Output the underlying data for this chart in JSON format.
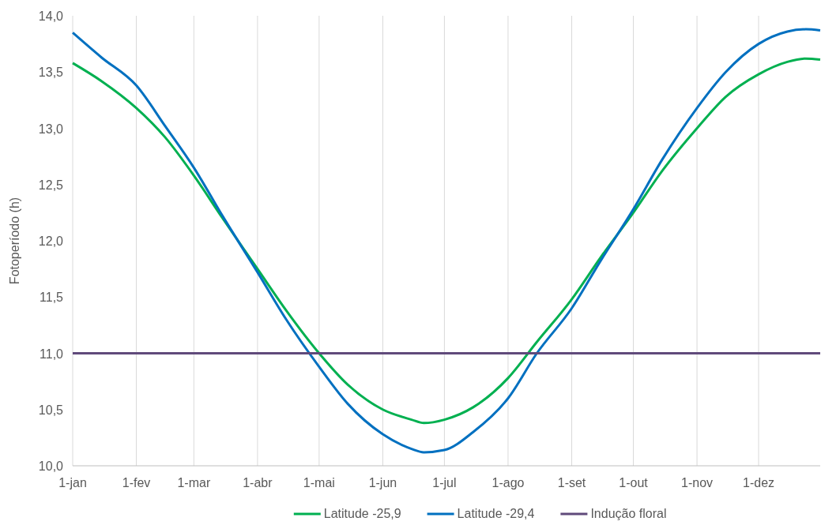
{
  "chart_data": {
    "type": "line",
    "ylabel": "Fotoperíodo (h)",
    "legend": "bottom",
    "grid": "x",
    "line_style": "solid",
    "marker": "none",
    "x": [
      "--01-01",
      "--01-15",
      "--02-01",
      "--02-15",
      "--03-01",
      "--03-15",
      "--04-01",
      "--04-15",
      "--05-01",
      "--05-15",
      "--06-01",
      "--06-15",
      "--06-21",
      "--07-01",
      "--07-15",
      "--08-01",
      "--08-15",
      "--09-01",
      "--09-15",
      "--10-01",
      "--10-15",
      "--11-01",
      "--11-15",
      "--12-01",
      "--12-15",
      "--12-24",
      "--12-31"
    ],
    "series": [
      {
        "name": "Latitude -25,9",
        "color": "#00b050",
        "values": [
          13.58,
          13.42,
          13.18,
          12.92,
          12.58,
          12.2,
          11.75,
          11.38,
          11.0,
          10.72,
          10.5,
          10.41,
          10.38,
          10.41,
          10.52,
          10.78,
          11.1,
          11.48,
          11.85,
          12.25,
          12.62,
          13.0,
          13.28,
          13.48,
          13.59,
          13.62,
          13.61
        ]
      },
      {
        "name": "Latitude -29,4",
        "color": "#0070c0",
        "values": [
          13.85,
          13.63,
          13.38,
          13.02,
          12.65,
          12.22,
          11.72,
          11.3,
          10.88,
          10.55,
          10.28,
          10.15,
          10.12,
          10.14,
          10.3,
          10.6,
          11.0,
          11.4,
          11.82,
          12.28,
          12.72,
          13.18,
          13.5,
          13.75,
          13.86,
          13.88,
          13.87
        ]
      },
      {
        "name": "Indução floral",
        "color": "#604a7b",
        "x": [
          "--01-01",
          "--12-31"
        ],
        "values": [
          11.0,
          11.0
        ]
      }
    ],
    "xlim": [
      "--01-01",
      "--12-31"
    ],
    "xticks": [
      {
        "value": "--01-01",
        "label": "1-jan"
      },
      {
        "value": "--02-01",
        "label": "1-fev"
      },
      {
        "value": "--03-01",
        "label": "1-mar"
      },
      {
        "value": "--04-01",
        "label": "1-abr"
      },
      {
        "value": "--05-01",
        "label": "1-mai"
      },
      {
        "value": "--06-01",
        "label": "1-jun"
      },
      {
        "value": "--07-01",
        "label": "1-jul"
      },
      {
        "value": "--08-01",
        "label": "1-ago"
      },
      {
        "value": "--09-01",
        "label": "1-set"
      },
      {
        "value": "--10-01",
        "label": "1-out"
      },
      {
        "value": "--11-01",
        "label": "1-nov"
      },
      {
        "value": "--12-01",
        "label": "1-dez"
      }
    ],
    "ylim": [
      10,
      14
    ],
    "yticks": [
      {
        "value": 10,
        "label": "10,0"
      },
      {
        "value": 10.5,
        "label": "10,5"
      },
      {
        "value": 11,
        "label": "11,0"
      },
      {
        "value": 11.5,
        "label": "11,5"
      },
      {
        "value": 12,
        "label": "12,0"
      },
      {
        "value": 12.5,
        "label": "12,5"
      },
      {
        "value": 13,
        "label": "13,0"
      },
      {
        "value": 13.5,
        "label": "13,5"
      },
      {
        "value": 14,
        "label": "14,0"
      }
    ]
  }
}
